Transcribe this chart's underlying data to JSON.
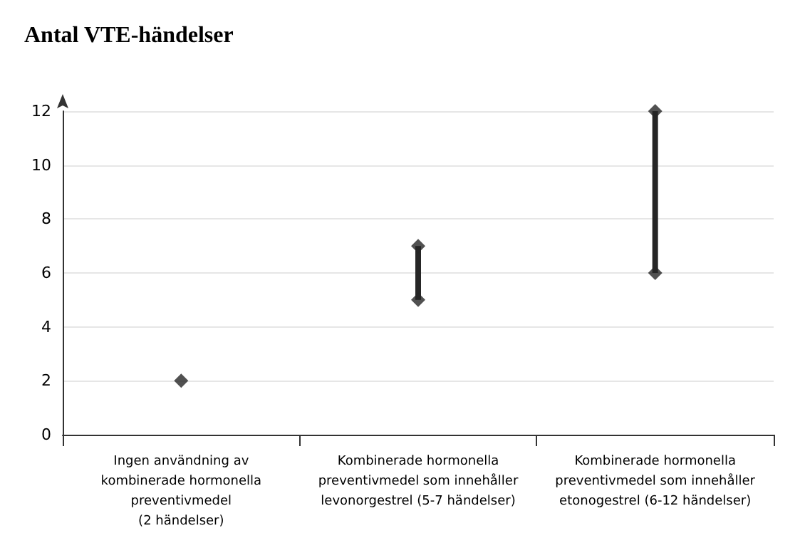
{
  "chart_data": {
    "type": "bar",
    "title": "Antal VTE-händelser",
    "categories": [
      "Ingen användning av\nkombinerade hormonella\npreventivmedel\n(2 händelser)",
      "Kombinerade hormonella\npreventivmedel som innehåller\nlevonorgestrel (5-7 händelser)",
      "Kombinerade hormonella\npreventivmedel som innehåller\netonogestrel (6-12 händelser)"
    ],
    "base": [
      null,
      5,
      6
    ],
    "values": [
      null,
      2,
      6
    ],
    "color": "#262626",
    "series": [
      {
        "type": "scatter",
        "marker": "diamond",
        "color": "#262626",
        "x": [
          "Ingen användning av\nkombinerade hormonella\npreventivmedel\n(2 händelser)",
          "Kombinerade hormonella\npreventivmedel som innehåller\nlevonorgestrel (5-7 händelser)",
          "Kombinerade hormonella\npreventivmedel som innehåller\nlevonorgestrel (5-7 händelser)",
          "Kombinerade hormonella\npreventivmedel som innehåller\netonogestrel (6-12 händelser)",
          "Kombinerade hormonella\npreventivmedel som innehåller\netonogestrel (6-12 händelser)"
        ],
        "values": [
          2,
          5,
          7,
          6,
          12
        ]
      }
    ],
    "ylim": [
      0,
      12
    ],
    "yticks": [
      0,
      2,
      4,
      6,
      8,
      10,
      12
    ],
    "grid": "y"
  }
}
